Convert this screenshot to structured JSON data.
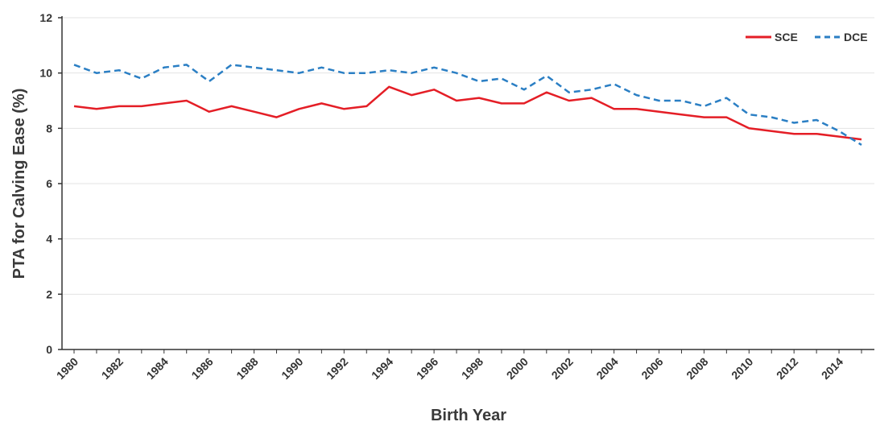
{
  "chart_data": {
    "type": "line",
    "xlabel": "Birth Year",
    "ylabel": "PTA for Calving Ease (%)",
    "ylim": [
      0,
      12
    ],
    "yticks": [
      0,
      2,
      4,
      6,
      8,
      10,
      12
    ],
    "xlim": [
      1980,
      2015
    ],
    "xticks": [
      "1980",
      "1982",
      "1984",
      "1986",
      "1988",
      "1990",
      "1992",
      "1994",
      "1996",
      "1998",
      "2000",
      "2002",
      "2004",
      "2006",
      "2008",
      "2010",
      "2012",
      "2014"
    ],
    "grid": true,
    "legend_position": "top-right",
    "x": [
      1980,
      1981,
      1982,
      1983,
      1984,
      1985,
      1986,
      1987,
      1988,
      1989,
      1990,
      1991,
      1992,
      1993,
      1994,
      1995,
      1996,
      1997,
      1998,
      1999,
      2000,
      2001,
      2002,
      2003,
      2004,
      2005,
      2006,
      2007,
      2008,
      2009,
      2010,
      2011,
      2012,
      2013,
      2014,
      2015
    ],
    "series": [
      {
        "name": "SCE",
        "color": "#e41e26",
        "style": "solid",
        "values": [
          8.8,
          8.7,
          8.8,
          8.8,
          8.9,
          9.0,
          8.6,
          8.8,
          8.6,
          8.4,
          8.7,
          8.9,
          8.7,
          8.8,
          9.5,
          9.2,
          9.4,
          9.0,
          9.1,
          8.9,
          8.9,
          9.3,
          9.0,
          9.1,
          8.7,
          8.7,
          8.6,
          8.5,
          8.4,
          8.4,
          8.0,
          7.9,
          7.8,
          7.8,
          7.7,
          7.6
        ]
      },
      {
        "name": "DCE",
        "color": "#2b7fc4",
        "style": "dashed",
        "values": [
          10.3,
          10.0,
          10.1,
          9.8,
          10.2,
          10.3,
          9.7,
          10.3,
          10.2,
          10.1,
          10.0,
          10.2,
          10.0,
          10.0,
          10.1,
          10.0,
          10.2,
          10.0,
          9.7,
          9.8,
          9.4,
          9.9,
          9.3,
          9.4,
          9.6,
          9.2,
          9.0,
          9.0,
          8.8,
          9.1,
          8.5,
          8.4,
          8.2,
          8.3,
          7.9,
          7.4
        ]
      }
    ]
  }
}
